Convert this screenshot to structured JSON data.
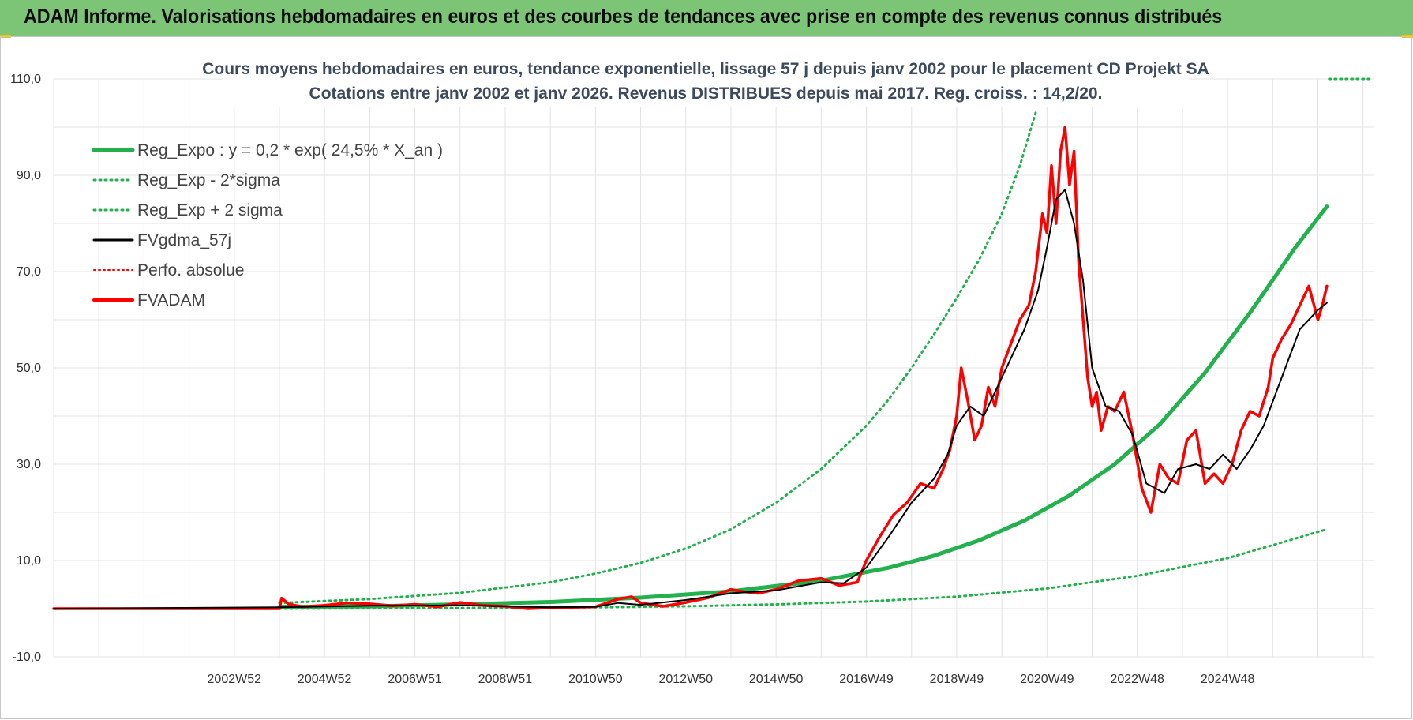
{
  "banner": {
    "title": "ADAM Informe. Valorisations hebdomadaires en euros et des courbes de tendances avec prise en compte des revenus connus distribués"
  },
  "colors": {
    "banner_bg": "#7cc576",
    "trend": "#22b14c",
    "smooth": "#000000",
    "price": "#ff0000",
    "grid": "#e3e3e3"
  },
  "chart_data": {
    "type": "line",
    "title_lines": [
      "Cours moyens hebdomadaires en euros, tendance exponentielle, lissage 57 j depuis janv 2002  pour le placement CD Projekt SA",
      "Cotations entre janv 2002 et janv 2026. Revenus DISTRIBUES depuis mai 2017.  Reg. croiss. : 14,2/20."
    ],
    "ylim": [
      -10,
      110
    ],
    "y_ticks": [
      -10,
      10,
      30,
      50,
      70,
      90,
      110
    ],
    "y_tick_labels": [
      "-10,0",
      "10,0",
      "30,0",
      "50,0",
      "70,0",
      "90,0",
      "110,0"
    ],
    "xlim": [
      1998.0,
      2027.25
    ],
    "x_tick_labels": [
      "2002W52",
      "2004W52",
      "2006W51",
      "2008W51",
      "2010W50",
      "2012W50",
      "2014W50",
      "2016W49",
      "2018W49",
      "2020W49",
      "2022W48",
      "2024W48"
    ],
    "x_tick_positions": [
      2002.0,
      2004.0,
      2006.0,
      2008.0,
      2010.0,
      2012.0,
      2014.0,
      2016.0,
      2018.0,
      2020.0,
      2022.0,
      2024.0
    ],
    "legend": [
      {
        "label": "Reg_Expo : y = 0,2 * exp( 24,5% *  X_an )",
        "style": "solid-green"
      },
      {
        "label": "Reg_Exp - 2*sigma",
        "style": "dotted-green"
      },
      {
        "label": "Reg_Exp + 2 sigma",
        "style": "dotted-green"
      },
      {
        "label": "FVgdma_57j",
        "style": "solid-black"
      },
      {
        "label": "Perfo. absolue",
        "style": "dotted-red"
      },
      {
        "label": "FVADAM",
        "style": "solid-red"
      }
    ],
    "series": [
      {
        "name": "Reg_Expo",
        "x": [
          2003.0,
          2005.0,
          2007.0,
          2009.0,
          2011.0,
          2013.0,
          2015.0,
          2016.5,
          2017.5,
          2018.5,
          2019.5,
          2020.5,
          2021.5,
          2022.5,
          2023.5,
          2024.5,
          2025.5,
          2026.2
        ],
        "y": [
          0.4,
          0.5,
          0.9,
          1.4,
          2.3,
          3.6,
          5.8,
          8.5,
          11.0,
          14.2,
          18.3,
          23.5,
          30.0,
          38.3,
          49.0,
          61.5,
          75.0,
          83.5
        ]
      },
      {
        "name": "Reg_Exp - 2*sigma",
        "x": [
          2003.0,
          2006.0,
          2009.0,
          2012.0,
          2014.0,
          2016.0,
          2018.0,
          2020.0,
          2022.0,
          2024.0,
          2025.0,
          2026.2
        ],
        "y": [
          0.0,
          0.1,
          0.2,
          0.5,
          0.9,
          1.5,
          2.5,
          4.2,
          6.8,
          10.5,
          13.2,
          16.5
        ]
      },
      {
        "name": "Reg_Exp + 2 sigma",
        "x": [
          2003.0,
          2005.0,
          2007.0,
          2009.0,
          2010.0,
          2011.0,
          2012.0,
          2013.0,
          2014.0,
          2015.0,
          2016.0,
          2016.5,
          2017.0,
          2017.5,
          2018.0,
          2018.5,
          2019.0,
          2019.4,
          2019.75
        ],
        "y": [
          1.2,
          2.0,
          3.3,
          5.5,
          7.3,
          9.5,
          12.5,
          16.5,
          22.0,
          29.0,
          38.0,
          43.5,
          50.0,
          57.0,
          64.5,
          72.5,
          82.0,
          92.0,
          103.0
        ],
        "extra_segment": {
          "x": [
            2026.25,
            2027.2
          ],
          "y": [
            110.0,
            110.0
          ]
        }
      },
      {
        "name": "FVgdma_57j",
        "x": [
          1998.0,
          2003.0,
          2005.0,
          2007.0,
          2009.0,
          2010.0,
          2010.5,
          2011.0,
          2012.0,
          2013.0,
          2014.0,
          2015.0,
          2015.5,
          2016.0,
          2016.5,
          2017.0,
          2017.5,
          2017.8,
          2018.0,
          2018.3,
          2018.6,
          2018.9,
          2019.2,
          2019.5,
          2019.8,
          2020.0,
          2020.2,
          2020.4,
          2020.6,
          2020.8,
          2021.0,
          2021.3,
          2021.6,
          2021.9,
          2022.2,
          2022.6,
          2022.9,
          2023.3,
          2023.6,
          2023.9,
          2024.2,
          2024.5,
          2024.8,
          2025.2,
          2025.6,
          2026.0,
          2026.2
        ],
        "y": [
          0.0,
          0.3,
          0.6,
          0.7,
          0.3,
          0.4,
          1.2,
          0.8,
          1.8,
          3.2,
          3.8,
          5.5,
          5.3,
          8.5,
          15.0,
          22.0,
          27.0,
          32.0,
          38.0,
          42.0,
          40.0,
          46.0,
          52.0,
          58.0,
          66.0,
          75.0,
          85.0,
          87.0,
          80.0,
          68.0,
          50.0,
          42.0,
          41.0,
          36.0,
          26.0,
          24.0,
          29.0,
          30.0,
          29.0,
          32.0,
          29.0,
          33.0,
          38.0,
          48.0,
          58.0,
          62.0,
          63.5
        ]
      },
      {
        "name": "FVADAM",
        "x": [
          1998.0,
          2003.0,
          2003.05,
          2003.2,
          2003.5,
          2004.0,
          2004.5,
          2005.0,
          2005.5,
          2006.0,
          2006.5,
          2007.0,
          2007.5,
          2008.0,
          2008.5,
          2009.0,
          2009.5,
          2010.0,
          2010.5,
          2010.8,
          2011.0,
          2011.5,
          2012.0,
          2012.5,
          2013.0,
          2013.3,
          2013.6,
          2014.0,
          2014.5,
          2015.0,
          2015.4,
          2015.8,
          2016.0,
          2016.3,
          2016.6,
          2016.9,
          2017.2,
          2017.5,
          2017.7,
          2017.85,
          2018.0,
          2018.1,
          2018.25,
          2018.4,
          2018.55,
          2018.7,
          2018.85,
          2019.0,
          2019.2,
          2019.4,
          2019.6,
          2019.75,
          2019.9,
          2020.0,
          2020.1,
          2020.2,
          2020.3,
          2020.4,
          2020.5,
          2020.6,
          2020.7,
          2020.8,
          2020.9,
          2021.0,
          2021.1,
          2021.2,
          2021.35,
          2021.5,
          2021.7,
          2021.9,
          2022.1,
          2022.3,
          2022.5,
          2022.7,
          2022.9,
          2023.1,
          2023.3,
          2023.5,
          2023.7,
          2023.9,
          2024.1,
          2024.3,
          2024.5,
          2024.7,
          2024.9,
          2025.0,
          2025.2,
          2025.4,
          2025.6,
          2025.8,
          2026.0,
          2026.1,
          2026.2
        ],
        "y": [
          0.0,
          0.0,
          2.2,
          1.0,
          0.4,
          0.7,
          1.2,
          1.0,
          0.6,
          0.9,
          0.4,
          1.3,
          0.7,
          0.5,
          0.0,
          0.2,
          0.3,
          0.4,
          2.0,
          2.5,
          1.2,
          0.5,
          1.3,
          2.3,
          4.0,
          3.5,
          3.2,
          4.0,
          5.8,
          6.3,
          4.8,
          5.5,
          10.0,
          15.0,
          19.5,
          22.0,
          26.0,
          25.0,
          29.0,
          33.0,
          40.0,
          50.0,
          43.0,
          35.0,
          38.0,
          46.0,
          42.0,
          50.0,
          55.0,
          60.0,
          63.0,
          70.0,
          82.0,
          78.0,
          92.0,
          80.0,
          95.0,
          100.0,
          88.0,
          95.0,
          72.0,
          60.0,
          48.0,
          42.0,
          45.0,
          37.0,
          42.0,
          41.0,
          45.0,
          36.0,
          25.0,
          20.0,
          30.0,
          27.0,
          26.0,
          35.0,
          37.0,
          26.0,
          28.0,
          26.0,
          30.0,
          37.0,
          41.0,
          40.0,
          46.0,
          52.0,
          56.0,
          59.0,
          63.0,
          67.0,
          60.0,
          63.0,
          67.0
        ]
      }
    ]
  }
}
